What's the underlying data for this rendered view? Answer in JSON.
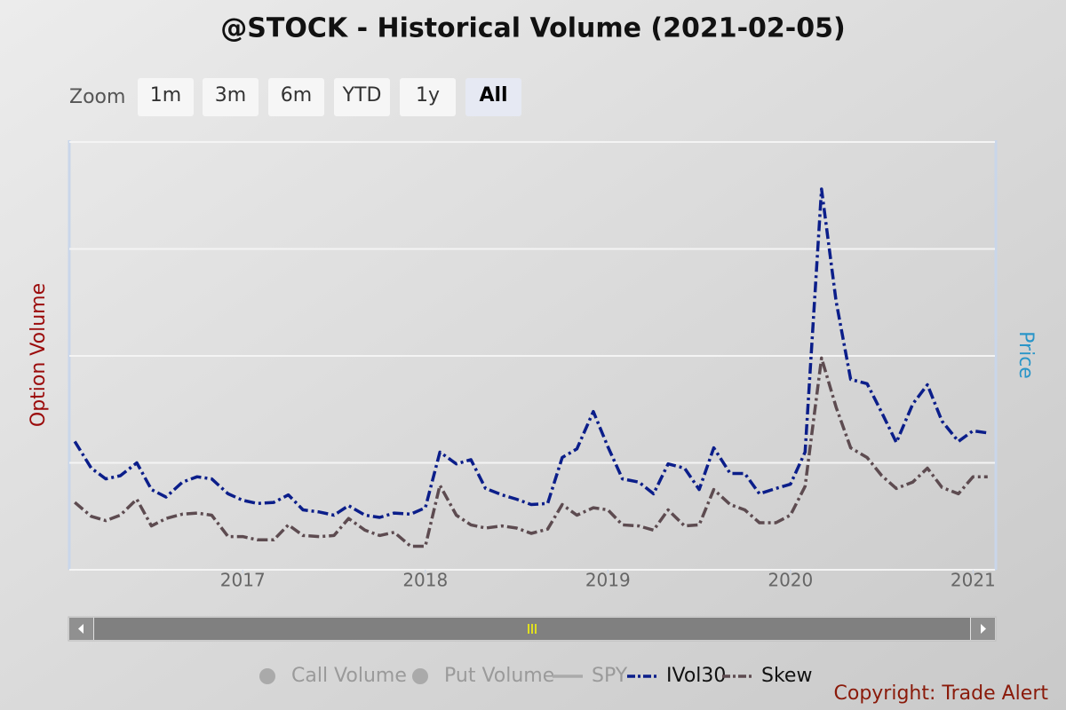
{
  "chart_data": {
    "type": "line",
    "title": "@STOCK - Historical Volume (2021-02-05)",
    "y_label": "Option Volume",
    "y2_label": "Price",
    "x": [
      2016.08,
      2016.17,
      2016.25,
      2016.33,
      2016.42,
      2016.5,
      2016.58,
      2016.67,
      2016.75,
      2016.83,
      2016.92,
      2017,
      2017.08,
      2017.17,
      2017.25,
      2017.33,
      2017.42,
      2017.5,
      2017.58,
      2017.67,
      2017.75,
      2017.83,
      2017.92,
      2018,
      2018.08,
      2018.17,
      2018.25,
      2018.33,
      2018.42,
      2018.5,
      2018.58,
      2018.67,
      2018.75,
      2018.83,
      2018.92,
      2019,
      2019.08,
      2019.17,
      2019.25,
      2019.33,
      2019.42,
      2019.5,
      2019.58,
      2019.67,
      2019.75,
      2019.83,
      2019.92,
      2020,
      2020.08,
      2020.17,
      2020.25,
      2020.33,
      2020.42,
      2020.5,
      2020.58,
      2020.67,
      2020.75,
      2020.83,
      2020.92,
      2021,
      2021.08
    ],
    "xlim": [
      2016.05,
      2021.12
    ],
    "xticks": [
      2017,
      2018,
      2019,
      2020,
      2021
    ],
    "ylim": [
      0,
      4
    ],
    "yticks": [
      0,
      1,
      2,
      3,
      4
    ],
    "grid": true,
    "series": [
      {
        "name": "Call Volume",
        "symbol": "circle",
        "visible": false,
        "color": "#aaaaaa"
      },
      {
        "name": "Put Volume",
        "symbol": "circle",
        "visible": false,
        "color": "#aaaaaa"
      },
      {
        "name": "SPY",
        "symbol": "line",
        "visible": false,
        "color": "#aaaaaa"
      },
      {
        "name": "IVol30",
        "symbol": "line",
        "visible": true,
        "color": "#0b1e8a",
        "values": [
          1.2,
          0.95,
          0.85,
          0.88,
          1.0,
          0.75,
          0.68,
          0.82,
          0.87,
          0.85,
          0.71,
          0.65,
          0.62,
          0.63,
          0.7,
          0.56,
          0.54,
          0.51,
          0.6,
          0.51,
          0.49,
          0.53,
          0.52,
          0.58,
          1.1,
          0.99,
          1.03,
          0.76,
          0.7,
          0.66,
          0.61,
          0.62,
          1.05,
          1.13,
          1.48,
          1.15,
          0.85,
          0.82,
          0.71,
          0.99,
          0.95,
          0.75,
          1.14,
          0.9,
          0.9,
          0.71,
          0.76,
          0.8,
          1.1,
          3.56,
          2.51,
          1.78,
          1.74,
          1.47,
          1.19,
          1.55,
          1.73,
          1.39,
          1.2,
          1.3,
          1.28
        ]
      },
      {
        "name": "Skew",
        "symbol": "line",
        "visible": true,
        "color": "#5d4b50",
        "values": [
          0.63,
          0.5,
          0.46,
          0.51,
          0.66,
          0.41,
          0.48,
          0.52,
          0.53,
          0.51,
          0.31,
          0.31,
          0.28,
          0.28,
          0.42,
          0.32,
          0.31,
          0.32,
          0.48,
          0.37,
          0.32,
          0.35,
          0.22,
          0.22,
          0.79,
          0.51,
          0.42,
          0.39,
          0.41,
          0.39,
          0.34,
          0.38,
          0.61,
          0.51,
          0.58,
          0.56,
          0.42,
          0.41,
          0.37,
          0.56,
          0.41,
          0.42,
          0.75,
          0.61,
          0.56,
          0.44,
          0.44,
          0.51,
          0.78,
          1.98,
          1.52,
          1.14,
          1.05,
          0.88,
          0.76,
          0.82,
          0.95,
          0.77,
          0.71,
          0.87,
          0.87
        ]
      }
    ]
  },
  "zoom": {
    "label": "Zoom",
    "buttons": [
      "1m",
      "3m",
      "6m",
      "YTD",
      "1y",
      "All"
    ],
    "selected_index": 5
  },
  "copyright": "Copyright: Trade Alert"
}
